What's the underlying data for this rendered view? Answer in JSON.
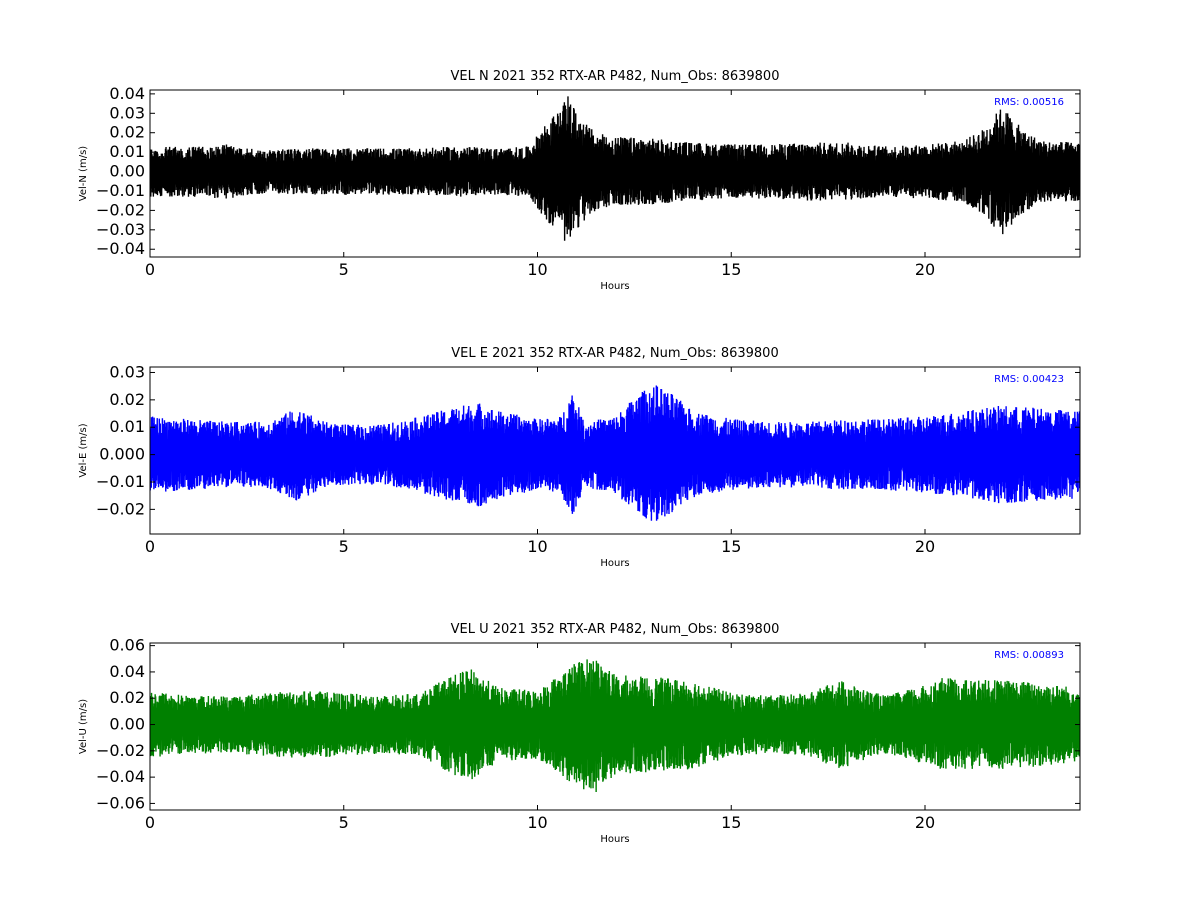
{
  "chart_data": [
    {
      "type": "line",
      "title": "VEL N 2021 352 RTX-AR  P482, Num_Obs: 8639800",
      "xlabel": "Hours",
      "ylabel": "Vel-N (m/s)",
      "xlim": [
        0,
        24
      ],
      "ylim": [
        -0.044,
        0.042
      ],
      "xticks": [
        0,
        5,
        10,
        15,
        20
      ],
      "yticks": [
        -0.04,
        -0.03,
        -0.02,
        -0.01,
        0.0,
        0.01,
        0.02,
        0.03,
        0.04
      ],
      "ytick_labels": [
        "−0.04",
        "−0.03",
        "−0.02",
        "−0.01",
        "0.00",
        "0.01",
        "0.02",
        "0.03",
        "0.04"
      ],
      "grid": false,
      "annotation": "RMS:  0.00516",
      "annotation_color": "#0000ff",
      "series": [
        {
          "color": "#000000",
          "x": [
            0,
            1,
            2,
            3,
            4,
            5,
            6,
            7,
            8,
            9,
            9.8,
            10.2,
            10.6,
            10.8,
            11,
            11.5,
            12,
            13,
            14,
            15,
            16,
            17,
            18,
            19,
            20,
            21,
            21.5,
            22,
            22.5,
            23,
            24
          ],
          "amplitude": [
            0.013,
            0.013,
            0.014,
            0.011,
            0.012,
            0.012,
            0.012,
            0.012,
            0.013,
            0.012,
            0.013,
            0.025,
            0.032,
            0.04,
            0.03,
            0.02,
            0.018,
            0.017,
            0.015,
            0.014,
            0.014,
            0.015,
            0.015,
            0.013,
            0.014,
            0.016,
            0.022,
            0.034,
            0.022,
            0.016,
            0.015
          ]
        }
      ]
    },
    {
      "type": "line",
      "title": "VEL E 2021 352 RTX-AR  P482, Num_Obs: 8639800",
      "xlabel": "Hours",
      "ylabel": "Vel-E (m/s)",
      "xlim": [
        0,
        24
      ],
      "ylim": [
        -0.029,
        0.032
      ],
      "xticks": [
        0,
        5,
        10,
        15,
        20
      ],
      "yticks": [
        -0.02,
        -0.01,
        0.0,
        0.01,
        0.02,
        0.03
      ],
      "ytick_labels": [
        "−0.02",
        "−0.01",
        "0.000",
        "0.01",
        "0.02",
        "0.03"
      ],
      "grid": false,
      "annotation": "RMS:  0.00423",
      "annotation_color": "#0000ff",
      "series": [
        {
          "color": "#0000ff",
          "x": [
            0,
            1,
            2,
            3,
            3.8,
            4.5,
            5,
            6,
            7,
            8,
            8.5,
            9,
            10,
            10.6,
            10.9,
            11.2,
            12,
            12.5,
            13,
            13.5,
            14,
            15,
            16,
            17,
            18,
            19,
            20,
            21,
            22,
            23,
            24
          ],
          "amplitude": [
            0.014,
            0.013,
            0.012,
            0.012,
            0.017,
            0.012,
            0.011,
            0.011,
            0.014,
            0.018,
            0.019,
            0.016,
            0.013,
            0.014,
            0.024,
            0.012,
            0.014,
            0.021,
            0.026,
            0.022,
            0.016,
            0.013,
            0.012,
            0.012,
            0.013,
            0.013,
            0.014,
            0.016,
            0.018,
            0.017,
            0.016
          ]
        }
      ]
    },
    {
      "type": "line",
      "title": "VEL U 2021 352 RTX-AR  P482, Num_Obs: 8639800",
      "xlabel": "Hours",
      "ylabel": "Vel-U (m/s)",
      "xlim": [
        0,
        24
      ],
      "ylim": [
        -0.065,
        0.062
      ],
      "xticks": [
        0,
        5,
        10,
        15,
        20
      ],
      "yticks": [
        -0.06,
        -0.04,
        -0.02,
        0.0,
        0.02,
        0.04,
        0.06
      ],
      "ytick_labels": [
        "−0.06",
        "−0.04",
        "−0.02",
        "0.00",
        "0.02",
        "0.04",
        "0.06"
      ],
      "grid": false,
      "annotation": "RMS:  0.00893",
      "annotation_color": "#0000ff",
      "series": [
        {
          "color": "#008000",
          "x": [
            0,
            1,
            2,
            3,
            4,
            5,
            6,
            7,
            7.8,
            8.3,
            9,
            10,
            11,
            11.5,
            12,
            13,
            14,
            15,
            16,
            17,
            17.8,
            18.5,
            19,
            20,
            20.5,
            21,
            22,
            23,
            24
          ],
          "amplitude": [
            0.026,
            0.022,
            0.022,
            0.024,
            0.026,
            0.024,
            0.022,
            0.024,
            0.038,
            0.042,
            0.028,
            0.026,
            0.048,
            0.052,
            0.038,
            0.036,
            0.034,
            0.024,
            0.022,
            0.024,
            0.034,
            0.026,
            0.022,
            0.03,
            0.036,
            0.034,
            0.034,
            0.032,
            0.028
          ]
        }
      ]
    }
  ]
}
